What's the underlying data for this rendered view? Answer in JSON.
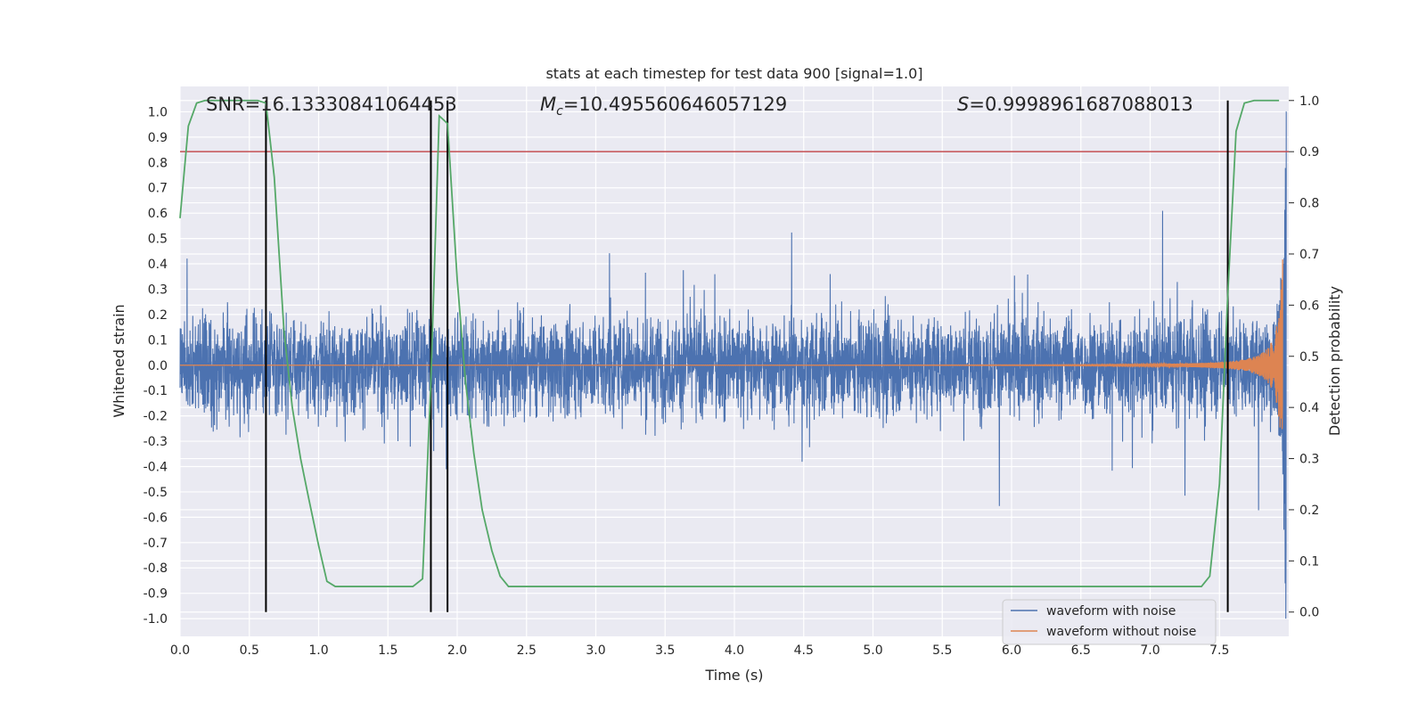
{
  "chart_data": {
    "type": "line",
    "title": "stats at each timestep for test data 900 [signal=1.0]",
    "xlabel": "Time (s)",
    "ylabel": "Whitened strain",
    "y2label": "Detection probability",
    "xlim": [
      0,
      8
    ],
    "ylim": [
      -1.07,
      1.1
    ],
    "y2lim": [
      -0.0475,
      1.0275
    ],
    "x_ticks": [
      "0.0",
      "0.5",
      "1.0",
      "1.5",
      "2.0",
      "2.5",
      "3.0",
      "3.5",
      "4.0",
      "4.5",
      "5.0",
      "5.5",
      "6.0",
      "6.5",
      "7.0",
      "7.5"
    ],
    "y_ticks": [
      "1.0",
      "0.9",
      "0.8",
      "0.7",
      "0.6",
      "0.5",
      "0.4",
      "0.3",
      "0.2",
      "0.1",
      "0.0",
      "-0.1",
      "-0.2",
      "-0.3",
      "-0.4",
      "-0.5",
      "-0.6",
      "-0.7",
      "-0.8",
      "-0.9",
      "-1.0"
    ],
    "y2_ticks": [
      "1.0",
      "0.9",
      "0.8",
      "0.7",
      "0.6",
      "0.5",
      "0.4",
      "0.3",
      "0.2",
      "0.1",
      "0.0"
    ],
    "annotations": {
      "snr": "SNR=16.13330841064453",
      "mc_symbol": "M",
      "mc_sub": "c",
      "mc_value": "=10.495560646057129",
      "s_symbol": "S",
      "s_value": "=0.9998961687088013"
    },
    "threshold": 0.9,
    "vlines": [
      0.62,
      1.81,
      1.93,
      7.56
    ],
    "legend": {
      "position": "lower-right",
      "entries": [
        "waveform with noise",
        "waveform without noise"
      ]
    },
    "colors": {
      "noise": "#4c72b0",
      "clean": "#dd8452",
      "prob": "#55a868",
      "threshold": "#c44e52",
      "vline": "#000000",
      "bg": "#eaeaf2",
      "grid": "#ffffff"
    },
    "series": [
      {
        "name": "Detection probability",
        "x": [
          0.0,
          0.06,
          0.12,
          0.18,
          0.25,
          0.31,
          0.37,
          0.43,
          0.5,
          0.56,
          0.62,
          0.68,
          0.75,
          0.81,
          0.87,
          0.93,
          1.0,
          1.06,
          1.12,
          1.25,
          1.5,
          1.68,
          1.75,
          1.81,
          1.87,
          1.93,
          2.0,
          2.06,
          2.12,
          2.18,
          2.25,
          2.31,
          2.37,
          2.5,
          3.0,
          3.75,
          4.5,
          5.0,
          6.0,
          7.0,
          7.37,
          7.43,
          7.5,
          7.56,
          7.62,
          7.68,
          7.75,
          7.81,
          7.87,
          7.93
        ],
        "y": [
          0.77,
          0.95,
          0.995,
          1.0,
          1.0,
          1.0,
          1.0,
          1.0,
          1.0,
          1.0,
          0.995,
          0.85,
          0.55,
          0.4,
          0.3,
          0.22,
          0.13,
          0.06,
          0.05,
          0.05,
          0.05,
          0.05,
          0.065,
          0.45,
          0.97,
          0.955,
          0.65,
          0.45,
          0.31,
          0.2,
          0.12,
          0.07,
          0.05,
          0.05,
          0.05,
          0.05,
          0.05,
          0.05,
          0.05,
          0.05,
          0.05,
          0.07,
          0.25,
          0.62,
          0.94,
          0.995,
          1.0,
          1.0,
          1.0,
          1.0
        ]
      }
    ]
  }
}
